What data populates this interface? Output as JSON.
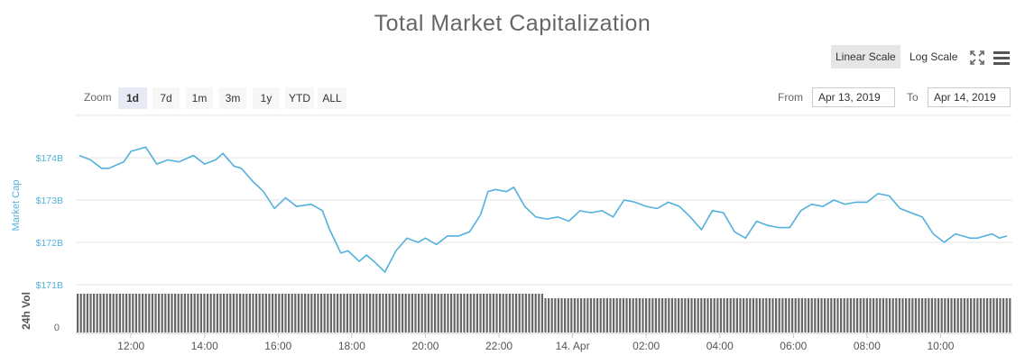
{
  "title": "Total Market Capitalization",
  "toolbar": {
    "linear_label": "Linear Scale",
    "log_label": "Log Scale",
    "fullscreen_icon": "fullscreen-icon",
    "menu_icon": "hamburger-menu-icon"
  },
  "zoom": {
    "label": "Zoom",
    "buttons": [
      "1d",
      "7d",
      "1m",
      "3m",
      "1y",
      "YTD",
      "ALL"
    ],
    "selected": "1d"
  },
  "range": {
    "from_label": "From",
    "from_value": "Apr 13, 2019",
    "to_label": "To",
    "to_value": "Apr 14, 2019"
  },
  "colors": {
    "line": "#52b1dc",
    "axis_label": "#52b1dc",
    "volume": "#666666",
    "grid": "#e6e6e6"
  },
  "chart_data": {
    "type": "line",
    "title": "Total Market Capitalization",
    "ylabel": "Market Cap",
    "y_unit": "B USD",
    "ylim": [
      171,
      175
    ],
    "yticks": [
      171,
      172,
      173,
      174
    ],
    "ytick_labels": [
      "$171B",
      "$172B",
      "$173B",
      "$174B"
    ],
    "x_start": "Apr 13, 2019 10:40",
    "x_end": "Apr 14, 2019 10:45",
    "xtick_hours": [
      12,
      14,
      16,
      18,
      20,
      22,
      24,
      26,
      28,
      30,
      32,
      34
    ],
    "xtick_labels": [
      "12:00",
      "14:00",
      "16:00",
      "18:00",
      "20:00",
      "22:00",
      "14. Apr",
      "02:00",
      "04:00",
      "06:00",
      "08:00",
      "10:00"
    ],
    "series": [
      {
        "name": "Market Cap",
        "x_hours": [
          10.6,
          10.9,
          11.2,
          11.4,
          11.8,
          12.0,
          12.2,
          12.4,
          12.7,
          13.0,
          13.3,
          13.7,
          14.0,
          14.3,
          14.5,
          14.8,
          15.0,
          15.3,
          15.6,
          15.9,
          16.2,
          16.5,
          16.9,
          17.2,
          17.4,
          17.7,
          17.9,
          18.2,
          18.4,
          18.6,
          18.9,
          19.2,
          19.5,
          19.8,
          20.0,
          20.3,
          20.6,
          20.9,
          21.2,
          21.5,
          21.7,
          21.9,
          22.2,
          22.4,
          22.7,
          23.0,
          23.3,
          23.6,
          23.9,
          24.2,
          24.5,
          24.8,
          25.1,
          25.4,
          25.7,
          26.0,
          26.3,
          26.6,
          26.9,
          27.2,
          27.5,
          27.8,
          28.1,
          28.4,
          28.7,
          29.0,
          29.3,
          29.6,
          29.9,
          30.2,
          30.5,
          30.8,
          31.1,
          31.4,
          31.7,
          32.0,
          32.3,
          32.6,
          32.9,
          33.2,
          33.5,
          33.8,
          34.1,
          34.4,
          34.6,
          34.8,
          35.0,
          35.2,
          35.4,
          35.6,
          35.8
        ],
        "values": [
          174.05,
          173.95,
          173.75,
          173.75,
          173.9,
          174.15,
          174.2,
          174.25,
          173.85,
          173.95,
          173.9,
          174.05,
          173.85,
          173.95,
          174.1,
          173.8,
          173.75,
          173.45,
          173.2,
          172.8,
          173.05,
          172.85,
          172.9,
          172.75,
          172.3,
          171.75,
          171.8,
          171.55,
          171.7,
          171.55,
          171.3,
          171.8,
          172.1,
          172.0,
          172.1,
          171.95,
          172.15,
          172.15,
          172.25,
          172.65,
          173.2,
          173.25,
          173.2,
          173.3,
          172.85,
          172.6,
          172.55,
          172.6,
          172.5,
          172.75,
          172.7,
          172.75,
          172.6,
          173.0,
          172.95,
          172.85,
          172.8,
          172.95,
          172.85,
          172.6,
          172.3,
          172.75,
          172.7,
          172.25,
          172.1,
          172.5,
          172.4,
          172.35,
          172.35,
          172.75,
          172.9,
          172.85,
          173.0,
          172.9,
          172.95,
          172.95,
          173.15,
          173.1,
          172.8,
          172.7,
          172.6,
          172.2,
          172.0,
          172.2,
          172.15,
          172.1,
          172.1,
          172.15,
          172.2,
          172.1,
          172.15
        ]
      }
    ],
    "volume_axis": {
      "label": "24h Vol",
      "tick_label": "0"
    },
    "grid": true,
    "legend": "none"
  }
}
